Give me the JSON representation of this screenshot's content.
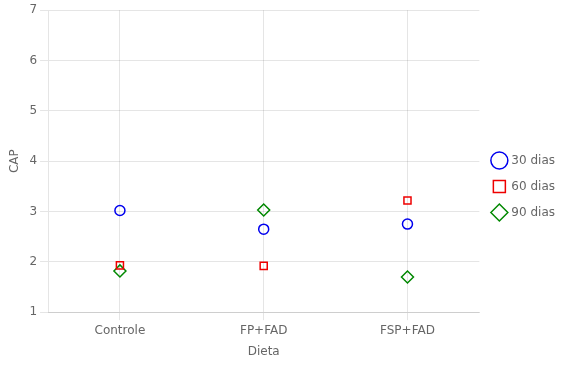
{
  "chart_data": {
    "type": "scatter",
    "categories": [
      "Controle",
      "FP+FAD",
      "FSP+FAD"
    ],
    "series": [
      {
        "name": "30 dias",
        "color": "#0000EE",
        "marker": "circle",
        "values": [
          3.02,
          2.65,
          2.75
        ]
      },
      {
        "name": "60 dias",
        "color": "#EE0000",
        "marker": "square",
        "values": [
          1.93,
          1.92,
          3.22
        ]
      },
      {
        "name": "90 dias",
        "color": "#008800",
        "marker": "diamond",
        "values": [
          1.82,
          3.03,
          1.7
        ]
      }
    ],
    "xlabel": "Dieta",
    "ylabel": "CAP",
    "ylim": [
      1,
      7
    ],
    "yticks": [
      1,
      2,
      3,
      4,
      5,
      6,
      7
    ],
    "grid": true,
    "legend": "right"
  }
}
